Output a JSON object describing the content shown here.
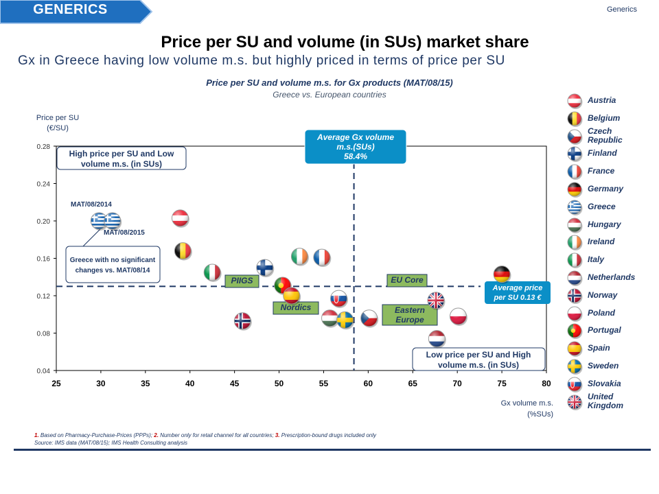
{
  "header": {
    "section_tag": "GENERICS",
    "corner_label": "Generics",
    "title": "Price per SU and volume (in SUs) market share",
    "subtitle": "Gx in Greece having low volume m.s. but highly priced in terms of price per SU"
  },
  "chart_data": {
    "type": "scatter",
    "title": "Price per SU and volume m.s. for Gx products (MAT/08/15)",
    "subtitle": "Greece vs. European countries",
    "ylabel": [
      "Price per SU",
      "(€/SU)"
    ],
    "xlabel": [
      "Gx volume m.s.",
      "(%SUs)"
    ],
    "xlim": [
      25,
      80
    ],
    "ylim": [
      0.04,
      0.28
    ],
    "x_ticks": [
      "25",
      "30",
      "35",
      "40",
      "45",
      "50",
      "55",
      "60",
      "65",
      "70",
      "75",
      "80"
    ],
    "y_ticks": [
      "0.04",
      "0.08",
      "0.12",
      "0.16",
      "0.20",
      "0.24",
      "0.28"
    ],
    "grid": false,
    "reference_lines": {
      "average_volume_x": 58.4,
      "average_price_y": 0.13
    },
    "points": [
      {
        "country": "Austria",
        "flag": "austria-flag",
        "x": 38.9,
        "y": 0.203
      },
      {
        "country": "Belgium",
        "flag": "belgium-flag",
        "x": 39.2,
        "y": 0.168
      },
      {
        "country": "Italy",
        "flag": "italy-flag",
        "x": 42.5,
        "y": 0.145
      },
      {
        "country": "Norway",
        "flag": "norway-flag",
        "x": 45.9,
        "y": 0.093
      },
      {
        "country": "Finland",
        "flag": "finland-flag",
        "x": 48.4,
        "y": 0.15
      },
      {
        "country": "Portugal",
        "flag": "portugal-flag",
        "x": 50.4,
        "y": 0.131
      },
      {
        "country": "Spain",
        "flag": "spain-flag",
        "x": 51.4,
        "y": 0.12
      },
      {
        "country": "Ireland",
        "flag": "ireland-flag",
        "x": 52.3,
        "y": 0.162
      },
      {
        "country": "France",
        "flag": "france-flag",
        "x": 54.8,
        "y": 0.161
      },
      {
        "country": "Hungary",
        "flag": "hungary-flag",
        "x": 55.7,
        "y": 0.096
      },
      {
        "country": "Slovakia",
        "flag": "slovakia-flag",
        "x": 56.7,
        "y": 0.117
      },
      {
        "country": "Sweden",
        "flag": "sweden-flag",
        "x": 57.4,
        "y": 0.094
      },
      {
        "country": "Czech Republic",
        "flag": "czech-flag",
        "x": 60.1,
        "y": 0.096
      },
      {
        "country": "United Kingdom",
        "flag": "uk-flag",
        "x": 67.6,
        "y": 0.115
      },
      {
        "country": "Netherlands",
        "flag": "netherlands-flag",
        "x": 67.7,
        "y": 0.074
      },
      {
        "country": "Poland",
        "flag": "poland-flag",
        "x": 70.1,
        "y": 0.098
      },
      {
        "country": "Germany",
        "flag": "germany-flag",
        "x": 75.0,
        "y": 0.143
      },
      {
        "country": "Greece",
        "period": "MAT/08/2014",
        "flag": "greece-flag",
        "x": 29.8,
        "y": 0.2
      },
      {
        "country": "Greece",
        "period": "MAT/08/2015",
        "flag": "greece-flag",
        "x": 31.3,
        "y": 0.2
      }
    ],
    "annotations": {
      "top_left_box": "High price per SU and Low volume m.s. (in SUs)",
      "avg_volume_box": [
        "Average Gx volume",
        "m.s.(SUs)",
        "58.4%"
      ],
      "avg_price_box": [
        "Average price",
        "per SU 0.13 €"
      ],
      "bottom_right_box": [
        "Low price per SU and High",
        "volume m.s. (in SUs)"
      ],
      "greece_note": [
        "Greece with no significant",
        "changes vs. MAT/08/14"
      ],
      "label_2014": "MAT/08/2014",
      "label_2015": "MAT/08/2015",
      "group_piigs": "PIIGS",
      "group_nordics": "Nordics",
      "group_eu_core": "EU Core",
      "group_eastern": [
        "Eastern",
        "Europe"
      ]
    }
  },
  "legend": [
    {
      "label": [
        "Austria"
      ],
      "flag": "austria-flag"
    },
    {
      "label": [
        "Belgium"
      ],
      "flag": "belgium-flag"
    },
    {
      "label": [
        "Czech",
        "Republic"
      ],
      "flag": "czech-flag"
    },
    {
      "label": [
        "Finland"
      ],
      "flag": "finland-flag"
    },
    {
      "label": [
        "France"
      ],
      "flag": "france-flag"
    },
    {
      "label": [
        "Germany"
      ],
      "flag": "germany-flag"
    },
    {
      "label": [
        "Greece"
      ],
      "flag": "greece-flag"
    },
    {
      "label": [
        "Hungary"
      ],
      "flag": "hungary-flag"
    },
    {
      "label": [
        "Ireland"
      ],
      "flag": "ireland-flag"
    },
    {
      "label": [
        "Italy"
      ],
      "flag": "italy-flag"
    },
    {
      "label": [
        "Netherlands"
      ],
      "flag": "netherlands-flag"
    },
    {
      "label": [
        "Norway"
      ],
      "flag": "norway-flag"
    },
    {
      "label": [
        "Poland"
      ],
      "flag": "poland-flag"
    },
    {
      "label": [
        "Portugal"
      ],
      "flag": "portugal-flag"
    },
    {
      "label": [
        "Spain"
      ],
      "flag": "spain-flag"
    },
    {
      "label": [
        "Sweden"
      ],
      "flag": "sweden-flag"
    },
    {
      "label": [
        "Slovakia"
      ],
      "flag": "slovakia-flag"
    },
    {
      "label": [
        "United",
        "Kingdom"
      ],
      "flag": "uk-flag"
    }
  ],
  "footnote": {
    "n1": "1.",
    "t1": " Based on Pharmacy-Purchase-Prices (PPPs); ",
    "n2": "2.",
    "t2": " Number only for retail channel for all countries; ",
    "n3": "3.",
    "t3": " Prescription-bound drugs included only",
    "source": "Source: IMS data (MAT/08/15); IMS Health Consulting analysis"
  },
  "colors": {
    "navy": "#1f3864",
    "tag_blue": "#1f6fbf",
    "avg_box": "#0b8fc7",
    "group_green": "#8dba5f",
    "note_border": "#1f3864"
  }
}
